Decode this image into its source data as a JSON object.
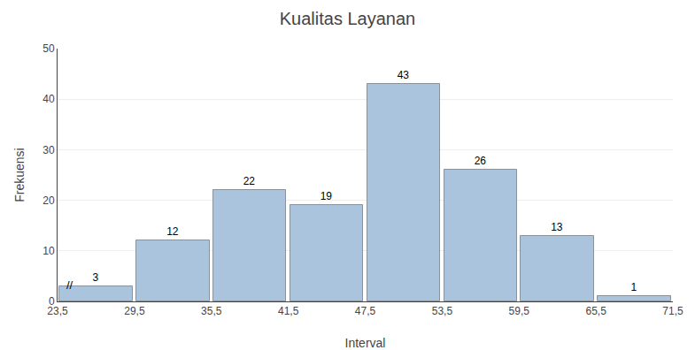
{
  "chart_data": {
    "type": "histogram",
    "title": "Kualitas Layanan",
    "xlabel": "Interval",
    "ylabel": "Frekuensi",
    "bins": [
      23.5,
      29.5,
      35.5,
      41.5,
      47.5,
      53.5,
      59.5,
      65.5,
      71.5
    ],
    "values": [
      3,
      12,
      22,
      19,
      43,
      26,
      13,
      1
    ],
    "color": "#aac4de",
    "data_labels": true,
    "xlim": [
      23.5,
      71.5
    ],
    "xticks": [
      {
        "value": 23.5,
        "label": "23,5"
      },
      {
        "value": 29.5,
        "label": "29,5"
      },
      {
        "value": 35.5,
        "label": "35,5"
      },
      {
        "value": 41.5,
        "label": "41,5"
      },
      {
        "value": 47.5,
        "label": "47,5"
      },
      {
        "value": 53.5,
        "label": "53,5"
      },
      {
        "value": 59.5,
        "label": "59,5"
      },
      {
        "value": 65.5,
        "label": "65,5"
      },
      {
        "value": 71.5,
        "label": "71,5"
      }
    ],
    "ylim": [
      0,
      50
    ],
    "yticks": [
      0,
      10,
      20,
      30,
      40,
      50
    ],
    "grid": true,
    "annotations": [
      "//"
    ]
  }
}
